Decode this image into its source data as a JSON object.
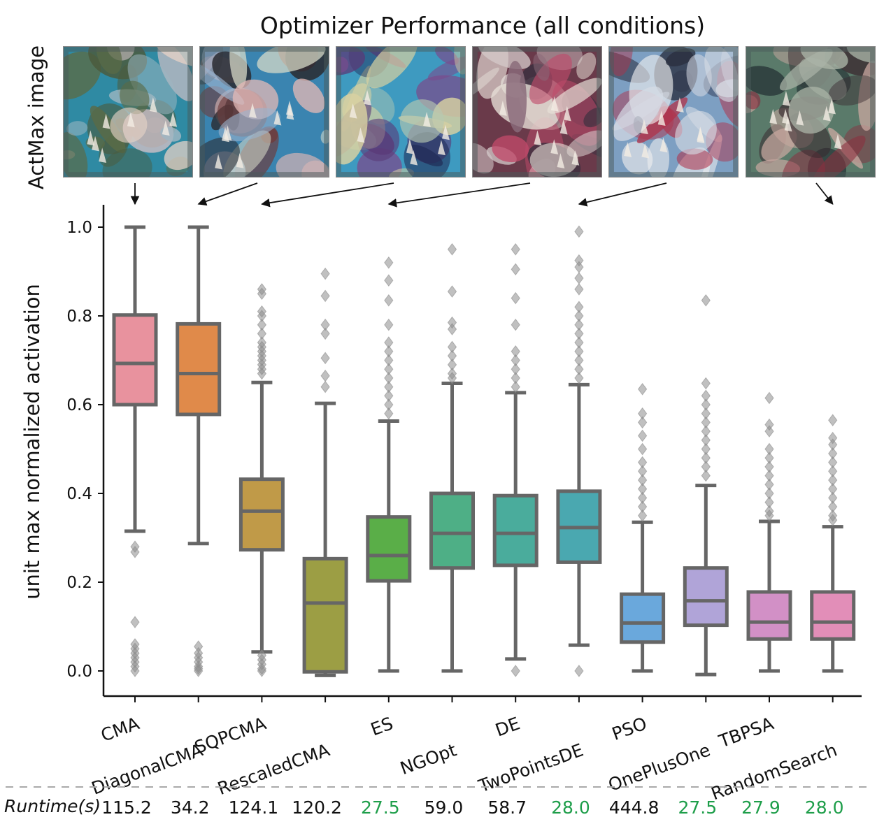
{
  "chart_data": {
    "type": "box",
    "title": "Optimizer Performance (all conditions)",
    "image_row_label": "ActMax image",
    "xlabel": "",
    "ylabel": "unit max normalized activation",
    "ylim": [
      -0.05,
      1.05
    ],
    "yticks": [
      "0.0",
      "0.2",
      "0.4",
      "0.6",
      "0.8",
      "1.0"
    ],
    "ytick_values": [
      0.0,
      0.2,
      0.4,
      0.6,
      0.8,
      1.0
    ],
    "categories": [
      "CMA",
      "DiagonalCMA",
      "SQPCMA",
      "RescaledCMA",
      "ES",
      "NGOpt",
      "DE",
      "TwoPointsDE",
      "PSO",
      "OnePlusOne",
      "TBPSA",
      "RandomSearch"
    ],
    "colors": [
      "#E8929E",
      "#E08A4A",
      "#C09A48",
      "#9C9E44",
      "#5AAE48",
      "#4EAF86",
      "#4AAC9C",
      "#4AA8B0",
      "#6AA8DC",
      "#B0A4D8",
      "#D290C6",
      "#E28EB8"
    ],
    "boxes": [
      {
        "q1": 0.6,
        "median": 0.693,
        "q3": 0.802,
        "whislo": 0.315,
        "whishi": 1.0,
        "outliers": [
          0.28,
          0.268,
          0.11,
          0.06,
          0.05,
          0.04,
          0.03,
          0.02,
          0.01,
          0.0
        ]
      },
      {
        "q1": 0.578,
        "median": 0.67,
        "q3": 0.782,
        "whislo": 0.287,
        "whishi": 1.0,
        "outliers": [
          0.055,
          0.04,
          0.03,
          0.02,
          0.01,
          0.005,
          0.0
        ]
      },
      {
        "q1": 0.273,
        "median": 0.36,
        "q3": 0.432,
        "whislo": 0.043,
        "whishi": 0.65,
        "outliers": [
          0.86,
          0.85,
          0.81,
          0.8,
          0.78,
          0.76,
          0.74,
          0.73,
          0.72,
          0.71,
          0.7,
          0.69,
          0.68,
          0.67,
          0.035,
          0.025,
          0.015,
          0.005,
          0.0
        ]
      },
      {
        "q1": -0.002,
        "median": 0.153,
        "q3": 0.253,
        "whislo": -0.01,
        "whishi": 0.603,
        "outliers": [
          0.895,
          0.845,
          0.78,
          0.76,
          0.705,
          0.665,
          0.64
        ]
      },
      {
        "q1": 0.203,
        "median": 0.26,
        "q3": 0.347,
        "whislo": 0.0,
        "whishi": 0.563,
        "outliers": [
          0.92,
          0.88,
          0.835,
          0.78,
          0.74,
          0.72,
          0.7,
          0.68,
          0.66,
          0.64,
          0.62,
          0.6,
          0.58
        ]
      },
      {
        "q1": 0.232,
        "median": 0.31,
        "q3": 0.4,
        "whislo": 0.0,
        "whishi": 0.648,
        "outliers": [
          0.95,
          0.855,
          0.785,
          0.77,
          0.73,
          0.71,
          0.69,
          0.67,
          0.66
        ]
      },
      {
        "q1": 0.238,
        "median": 0.31,
        "q3": 0.395,
        "whislo": 0.027,
        "whishi": 0.627,
        "outliers": [
          0.95,
          0.905,
          0.84,
          0.78,
          0.72,
          0.7,
          0.68,
          0.66,
          0.64,
          0.0
        ]
      },
      {
        "q1": 0.245,
        "median": 0.323,
        "q3": 0.405,
        "whislo": 0.058,
        "whishi": 0.645,
        "outliers": [
          0.99,
          0.925,
          0.91,
          0.885,
          0.86,
          0.82,
          0.8,
          0.78,
          0.76,
          0.74,
          0.72,
          0.7,
          0.68,
          0.66,
          0.0
        ]
      },
      {
        "q1": 0.065,
        "median": 0.108,
        "q3": 0.173,
        "whislo": 0.0,
        "whishi": 0.335,
        "outliers": [
          0.635,
          0.58,
          0.56,
          0.53,
          0.5,
          0.47,
          0.45,
          0.43,
          0.41,
          0.39,
          0.37,
          0.35
        ]
      },
      {
        "q1": 0.103,
        "median": 0.158,
        "q3": 0.232,
        "whislo": -0.008,
        "whishi": 0.418,
        "outliers": [
          0.835,
          0.648,
          0.62,
          0.6,
          0.58,
          0.56,
          0.54,
          0.52,
          0.5,
          0.48,
          0.46,
          0.44
        ]
      },
      {
        "q1": 0.072,
        "median": 0.11,
        "q3": 0.178,
        "whislo": 0.0,
        "whishi": 0.337,
        "outliers": [
          0.615,
          0.555,
          0.54,
          0.5,
          0.48,
          0.46,
          0.44,
          0.42,
          0.4,
          0.38,
          0.36,
          0.35
        ]
      },
      {
        "q1": 0.072,
        "median": 0.11,
        "q3": 0.178,
        "whislo": 0.0,
        "whishi": 0.325,
        "outliers": [
          0.565,
          0.525,
          0.51,
          0.49,
          0.47,
          0.45,
          0.43,
          0.41,
          0.39,
          0.37,
          0.35,
          0.34
        ]
      }
    ],
    "runtime_label": "Runtime(s)",
    "runtimes": [
      "115.2",
      "34.2",
      "124.1",
      "120.2",
      "27.5",
      "59.0",
      "58.7",
      "28.0",
      "444.8",
      "27.5",
      "27.9",
      "28.0"
    ],
    "runtime_highlight": [
      false,
      false,
      false,
      false,
      true,
      false,
      false,
      true,
      false,
      true,
      true,
      true
    ],
    "runtime_highlight_color": "#1E9E4A",
    "runtime_color": "#111111",
    "box_edge_color": "#666666",
    "actmax_images": [
      "CMA",
      "DiagonalCMA",
      "SQPCMA",
      "ES",
      "TwoPointsDE",
      "RandomSearch"
    ]
  }
}
